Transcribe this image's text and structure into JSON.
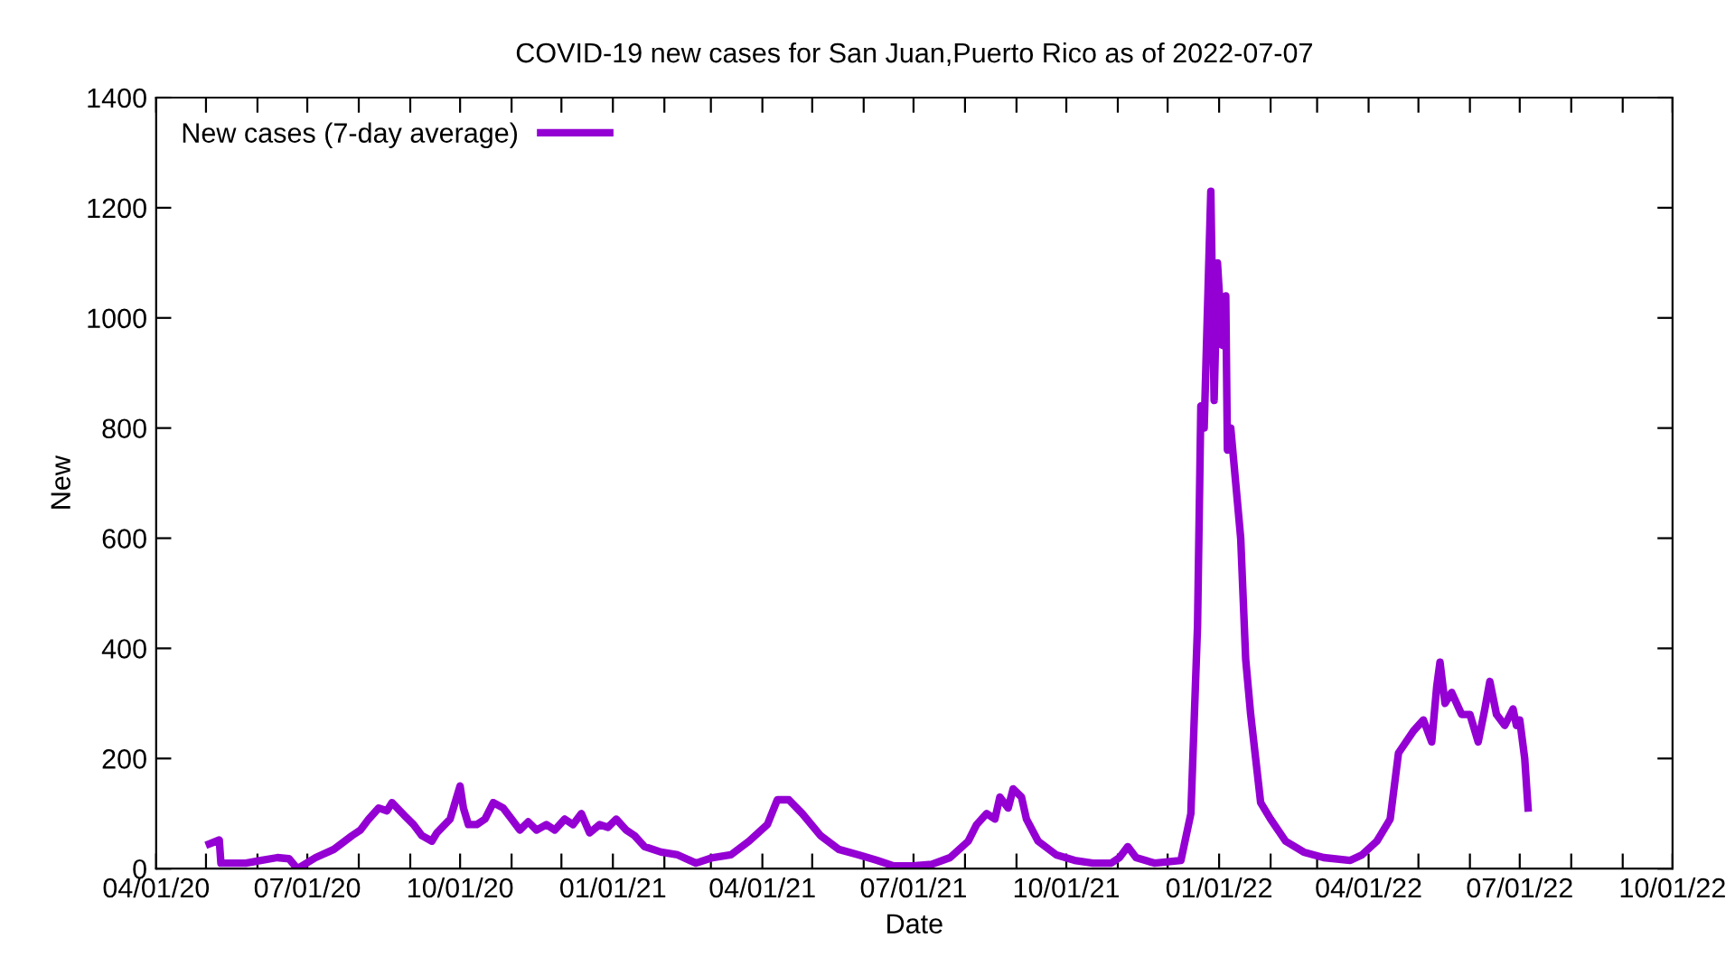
{
  "chart_data": {
    "type": "line",
    "title": "COVID-19 new cases for San Juan,Puerto Rico as of 2022-07-07",
    "xlabel": "Date",
    "ylabel": "New",
    "ylim": [
      0,
      1400
    ],
    "yticks": [
      0,
      200,
      400,
      600,
      800,
      1000,
      1200,
      1400
    ],
    "xlim": [
      "2020-04-01",
      "2022-10-01"
    ],
    "xticks": [
      {
        "value": "2020-04-01",
        "label": "04/01/20"
      },
      {
        "value": "2020-05-01",
        "label": null
      },
      {
        "value": "2020-06-01",
        "label": null
      },
      {
        "value": "2020-07-01",
        "label": "07/01/20"
      },
      {
        "value": "2020-08-01",
        "label": null
      },
      {
        "value": "2020-09-01",
        "label": null
      },
      {
        "value": "2020-10-01",
        "label": "10/01/20"
      },
      {
        "value": "2020-11-01",
        "label": null
      },
      {
        "value": "2020-12-01",
        "label": null
      },
      {
        "value": "2021-01-01",
        "label": "01/01/21"
      },
      {
        "value": "2021-02-01",
        "label": null
      },
      {
        "value": "2021-03-01",
        "label": null
      },
      {
        "value": "2021-04-01",
        "label": "04/01/21"
      },
      {
        "value": "2021-05-01",
        "label": null
      },
      {
        "value": "2021-06-01",
        "label": null
      },
      {
        "value": "2021-07-01",
        "label": "07/01/21"
      },
      {
        "value": "2021-08-01",
        "label": null
      },
      {
        "value": "2021-09-01",
        "label": null
      },
      {
        "value": "2021-10-01",
        "label": "10/01/21"
      },
      {
        "value": "2021-11-01",
        "label": null
      },
      {
        "value": "2021-12-01",
        "label": null
      },
      {
        "value": "2022-01-01",
        "label": "01/01/22"
      },
      {
        "value": "2022-02-01",
        "label": null
      },
      {
        "value": "2022-03-01",
        "label": null
      },
      {
        "value": "2022-04-01",
        "label": "04/01/22"
      },
      {
        "value": "2022-05-01",
        "label": null
      },
      {
        "value": "2022-06-01",
        "label": null
      },
      {
        "value": "2022-07-01",
        "label": "07/01/22"
      },
      {
        "value": "2022-08-01",
        "label": null
      },
      {
        "value": "2022-09-01",
        "label": null
      },
      {
        "value": "2022-10-01",
        "label": "10/01/22"
      }
    ],
    "grid": false,
    "legend": "top left",
    "marker": "none",
    "line_style": "solid",
    "series": [
      {
        "name": "New cases (7-day average)",
        "color": "#9400d3",
        "x": [
          "2020-05-03",
          "2020-05-09",
          "2020-05-10",
          "2020-05-25",
          "2020-06-03",
          "2020-06-13",
          "2020-06-20",
          "2020-06-25",
          "2020-07-06",
          "2020-07-17",
          "2020-07-28",
          "2020-08-02",
          "2020-08-07",
          "2020-08-13",
          "2020-08-18",
          "2020-08-21",
          "2020-08-29",
          "2020-09-03",
          "2020-09-08",
          "2020-09-14",
          "2020-09-17",
          "2020-09-25",
          "2020-09-28",
          "2020-10-01",
          "2020-10-03",
          "2020-10-06",
          "2020-10-11",
          "2020-10-16",
          "2020-10-21",
          "2020-10-27",
          "2020-11-01",
          "2020-11-06",
          "2020-11-11",
          "2020-11-16",
          "2020-11-22",
          "2020-11-27",
          "2020-12-03",
          "2020-12-08",
          "2020-12-13",
          "2020-12-18",
          "2020-12-24",
          "2020-12-29",
          "2021-01-03",
          "2021-01-09",
          "2021-01-14",
          "2021-01-20",
          "2021-01-30",
          "2021-02-09",
          "2021-02-20",
          "2021-03-02",
          "2021-03-13",
          "2021-03-24",
          "2021-04-04",
          "2021-04-10",
          "2021-04-17",
          "2021-04-25",
          "2021-05-06",
          "2021-05-17",
          "2021-05-29",
          "2021-06-09",
          "2021-06-19",
          "2021-07-01",
          "2021-07-12",
          "2021-07-23",
          "2021-08-03",
          "2021-08-08",
          "2021-08-14",
          "2021-08-19",
          "2021-08-22",
          "2021-08-27",
          "2021-08-30",
          "2021-09-04",
          "2021-09-07",
          "2021-09-14",
          "2021-09-25",
          "2021-10-06",
          "2021-10-17",
          "2021-10-28",
          "2021-11-02",
          "2021-11-07",
          "2021-11-12",
          "2021-11-23",
          "2021-12-09",
          "2021-12-15",
          "2021-12-19",
          "2021-12-21",
          "2021-12-23",
          "2021-12-27",
          "2021-12-29",
          "2021-12-31",
          "2022-01-03",
          "2022-01-05",
          "2022-01-06",
          "2022-01-08",
          "2022-01-11",
          "2022-01-14",
          "2022-01-17",
          "2022-01-20",
          "2022-01-23",
          "2022-01-26",
          "2022-02-01",
          "2022-02-10",
          "2022-02-21",
          "2022-03-05",
          "2022-03-21",
          "2022-03-28",
          "2022-04-06",
          "2022-04-14",
          "2022-04-19",
          "2022-04-28",
          "2022-05-04",
          "2022-05-09",
          "2022-05-12",
          "2022-05-14",
          "2022-05-17",
          "2022-05-21",
          "2022-05-27",
          "2022-06-01",
          "2022-06-06",
          "2022-06-10",
          "2022-06-13",
          "2022-06-17",
          "2022-06-22",
          "2022-06-27",
          "2022-06-29",
          "2022-07-01",
          "2022-07-04",
          "2022-07-06"
        ],
        "values": [
          45,
          52,
          10,
          10,
          15,
          20,
          18,
          0,
          20,
          35,
          60,
          70,
          90,
          110,
          105,
          120,
          95,
          80,
          60,
          50,
          65,
          90,
          120,
          150,
          110,
          80,
          80,
          90,
          120,
          110,
          90,
          70,
          85,
          70,
          80,
          70,
          90,
          80,
          100,
          65,
          80,
          75,
          90,
          70,
          60,
          40,
          30,
          25,
          10,
          20,
          25,
          50,
          80,
          125,
          125,
          100,
          60,
          35,
          25,
          15,
          5,
          5,
          8,
          20,
          50,
          80,
          100,
          90,
          130,
          110,
          145,
          130,
          90,
          50,
          25,
          15,
          10,
          10,
          20,
          40,
          20,
          10,
          15,
          100,
          440,
          840,
          800,
          1230,
          850,
          1100,
          950,
          1040,
          760,
          800,
          700,
          600,
          380,
          280,
          200,
          120,
          90,
          50,
          30,
          20,
          15,
          25,
          50,
          90,
          210,
          250,
          270,
          230,
          330,
          375,
          300,
          320,
          280,
          280,
          230,
          290,
          340,
          280,
          260,
          290,
          260,
          270,
          200,
          110
        ]
      }
    ]
  }
}
